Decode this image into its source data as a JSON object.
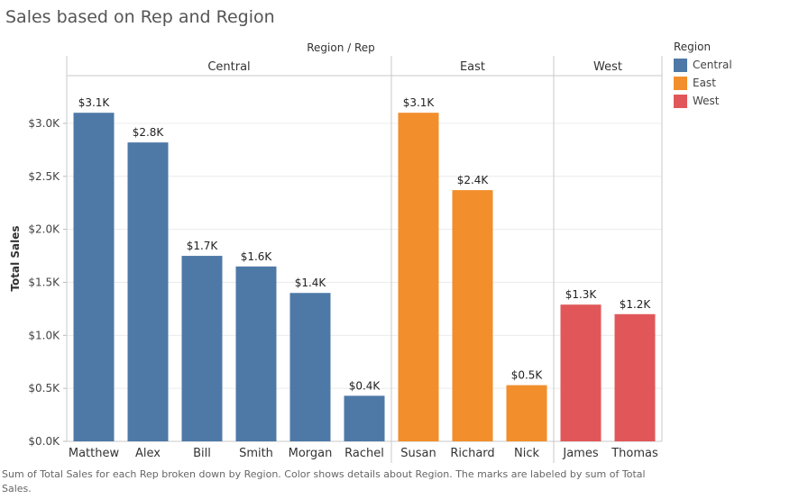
{
  "title": "Sales based on Rep and Region",
  "caption": "Sum of Total Sales for each Rep broken down by Region.  Color shows details about Region.  The marks are labeled by sum of Total Sales.",
  "legend": {
    "title": "Region",
    "items": [
      {
        "label": "Central",
        "color": "#4e79a7"
      },
      {
        "label": "East",
        "color": "#f28e2b"
      },
      {
        "label": "West",
        "color": "#e15759"
      }
    ]
  },
  "chart_data": {
    "type": "bar",
    "column_header": "Region / Rep",
    "ylabel": "Total Sales",
    "ylim": [
      0,
      3450
    ],
    "yticks": [
      {
        "value": 0,
        "label": "$0.0K"
      },
      {
        "value": 500,
        "label": "$0.5K"
      },
      {
        "value": 1000,
        "label": "$1.0K"
      },
      {
        "value": 1500,
        "label": "$1.5K"
      },
      {
        "value": 2000,
        "label": "$2.0K"
      },
      {
        "value": 2500,
        "label": "$2.5K"
      },
      {
        "value": 3000,
        "label": "$3.0K"
      }
    ],
    "gridlines": true,
    "groups": [
      {
        "region": "Central",
        "color": "#4e79a7",
        "bars": [
          {
            "rep": "Matthew",
            "value": 3100,
            "label": "$3.1K"
          },
          {
            "rep": "Alex",
            "value": 2820,
            "label": "$2.8K"
          },
          {
            "rep": "Bill",
            "value": 1750,
            "label": "$1.7K"
          },
          {
            "rep": "Smith",
            "value": 1650,
            "label": "$1.6K"
          },
          {
            "rep": "Morgan",
            "value": 1400,
            "label": "$1.4K"
          },
          {
            "rep": "Rachel",
            "value": 430,
            "label": "$0.4K"
          }
        ]
      },
      {
        "region": "East",
        "color": "#f28e2b",
        "bars": [
          {
            "rep": "Susan",
            "value": 3100,
            "label": "$3.1K"
          },
          {
            "rep": "Richard",
            "value": 2370,
            "label": "$2.4K"
          },
          {
            "rep": "Nick",
            "value": 530,
            "label": "$0.5K"
          }
        ]
      },
      {
        "region": "West",
        "color": "#e15759",
        "bars": [
          {
            "rep": "James",
            "value": 1290,
            "label": "$1.3K"
          },
          {
            "rep": "Thomas",
            "value": 1200,
            "label": "$1.2K"
          }
        ]
      }
    ]
  }
}
